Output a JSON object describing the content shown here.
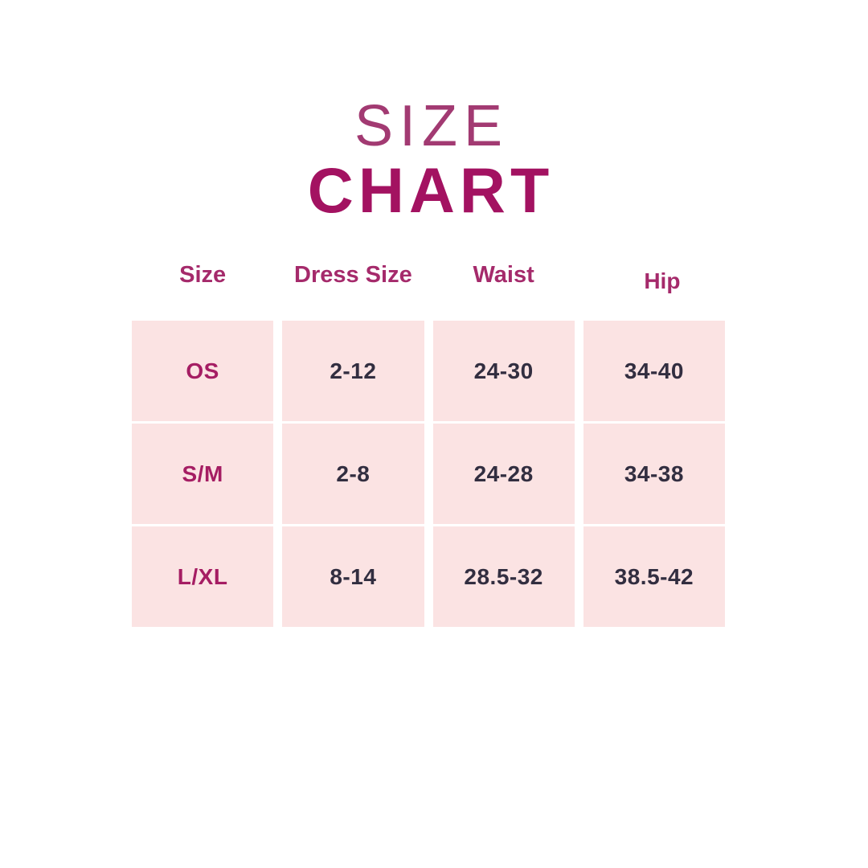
{
  "page": {
    "background": "#ffffff"
  },
  "title": {
    "line1": "SIZE",
    "line2": "CHART"
  },
  "colors": {
    "title_size_text": "#a23a72",
    "title_chart_text": "#a31261",
    "column_header_text": "#a52a6b",
    "row_label_text": "#a51d63",
    "value_text": "#322e40",
    "cell_background": "#fbe3e3",
    "gutter": "#ffffff"
  },
  "chart_data": {
    "type": "table",
    "title": "SIZE CHART",
    "columns": [
      "Size",
      "Dress Size",
      "Waist",
      "Hip"
    ],
    "rows": [
      [
        "OS",
        "2-12",
        "24-30",
        "34-40"
      ],
      [
        "S/M",
        "2-8",
        "24-28",
        "34-38"
      ],
      [
        "L/XL",
        "8-14",
        "28.5-32",
        "38.5-42"
      ]
    ],
    "layout": {
      "header_position": "above-grid",
      "grid_lines": "white-gutters",
      "columns_count": 4,
      "rows_count": 3
    }
  }
}
